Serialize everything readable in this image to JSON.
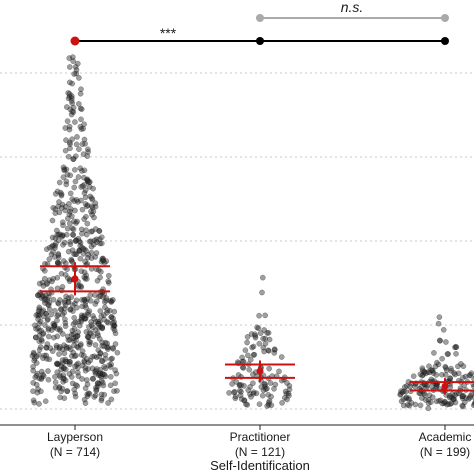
{
  "chart_data": {
    "type": "scatter",
    "subtype": "beeswarm",
    "xlabel": "Self-Identification",
    "ylabel": "",
    "grid": "horizontal dotted",
    "categories": [
      {
        "name": "Layperson",
        "count_label": "(N = 714)",
        "n": 714,
        "mean": 1.55,
        "ci": [
          1.4,
          1.7
        ],
        "ymax": 4.2
      },
      {
        "name": "Practitioner",
        "count_label": "(N = 121)",
        "n": 121,
        "mean": 0.45,
        "ci": [
          0.37,
          0.53
        ],
        "ymax": 2.35
      },
      {
        "name": "Academic",
        "count_label": "(N = 199)",
        "n": 199,
        "mean": 0.27,
        "ci": [
          0.22,
          0.32
        ],
        "ymax": 2.2
      }
    ],
    "ylim": [
      0,
      4.3
    ],
    "gridlines": [
      0,
      1,
      2,
      3,
      4
    ],
    "comparisons": [
      {
        "from": "Layperson",
        "to": "Academic",
        "label": "***",
        "color": "#000000"
      },
      {
        "from": "Practitioner",
        "to": "Academic",
        "label": "n.s.",
        "color": "#aaaaaa"
      }
    ],
    "colors": {
      "points": "#2b2b2b",
      "summary": "#cc1111",
      "main_bracket": "#000000",
      "ns_bracket": "#aaaaaa",
      "grid": "#c8c8c8"
    }
  }
}
